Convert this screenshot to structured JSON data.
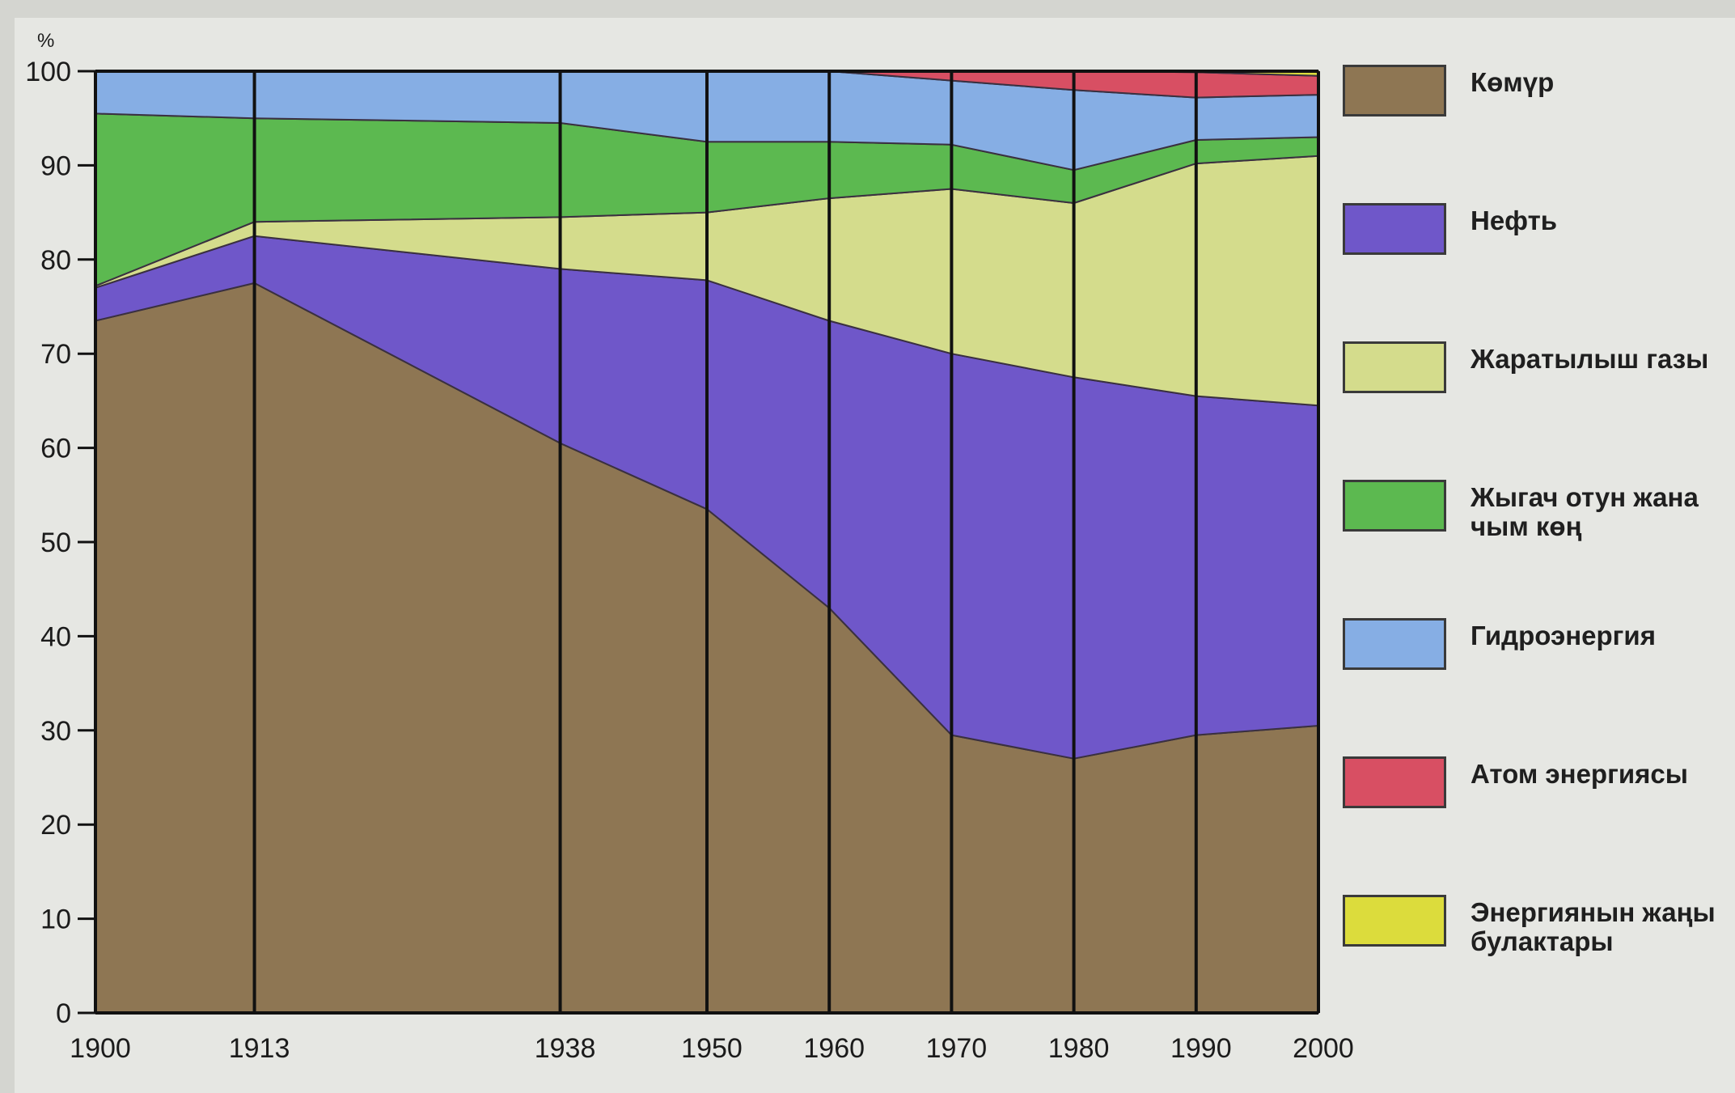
{
  "chart_data": {
    "type": "area",
    "stacked": true,
    "y_unit": "%",
    "ylim": [
      0,
      100
    ],
    "yticks": [
      0,
      10,
      20,
      30,
      40,
      50,
      60,
      70,
      80,
      90,
      100
    ],
    "x": [
      1900,
      1913,
      1938,
      1950,
      1960,
      1970,
      1980,
      1990,
      2000
    ],
    "xticks": [
      "1900",
      "1913",
      "1938",
      "1950",
      "1960",
      "1970",
      "1980",
      "1990",
      "2000"
    ],
    "vertical_gridlines_at_x": true,
    "legend_position": "right",
    "series": [
      {
        "name": "Көмүр",
        "color": "#8e7653",
        "values": [
          73.5,
          77.5,
          60.5,
          53.5,
          43,
          29.5,
          27,
          29.5,
          30.5
        ]
      },
      {
        "name": "Нефть",
        "color": "#6f57c9",
        "values": [
          3.5,
          5,
          18.5,
          24.3,
          30.5,
          40.5,
          40.5,
          36,
          34
        ]
      },
      {
        "name": "Жаратылыш газы",
        "color": "#d4dc8c",
        "values": [
          0.2,
          1.5,
          5.5,
          7.2,
          13,
          17.5,
          18.5,
          24.7,
          26.5
        ]
      },
      {
        "name": "Жыгач отун жана чым көң",
        "color": "#5cb950",
        "values": [
          18.3,
          11,
          10,
          7.5,
          6,
          4.7,
          3.5,
          2.5,
          2
        ]
      },
      {
        "name": "Гидроэнергия",
        "color": "#86aee4",
        "values": [
          4.5,
          5,
          5.5,
          7.5,
          7.5,
          6.8,
          8.5,
          4.5,
          4.5
        ]
      },
      {
        "name": "Атом энергиясы",
        "color": "#d84f63",
        "values": [
          0,
          0,
          0,
          0,
          0,
          1,
          2,
          2.7,
          2
        ]
      },
      {
        "name": "Энергиянын жаңы булактары",
        "color": "#dcdc3c",
        "values": [
          0,
          0,
          0,
          0,
          0,
          0,
          0,
          0.1,
          0.5
        ]
      }
    ]
  }
}
